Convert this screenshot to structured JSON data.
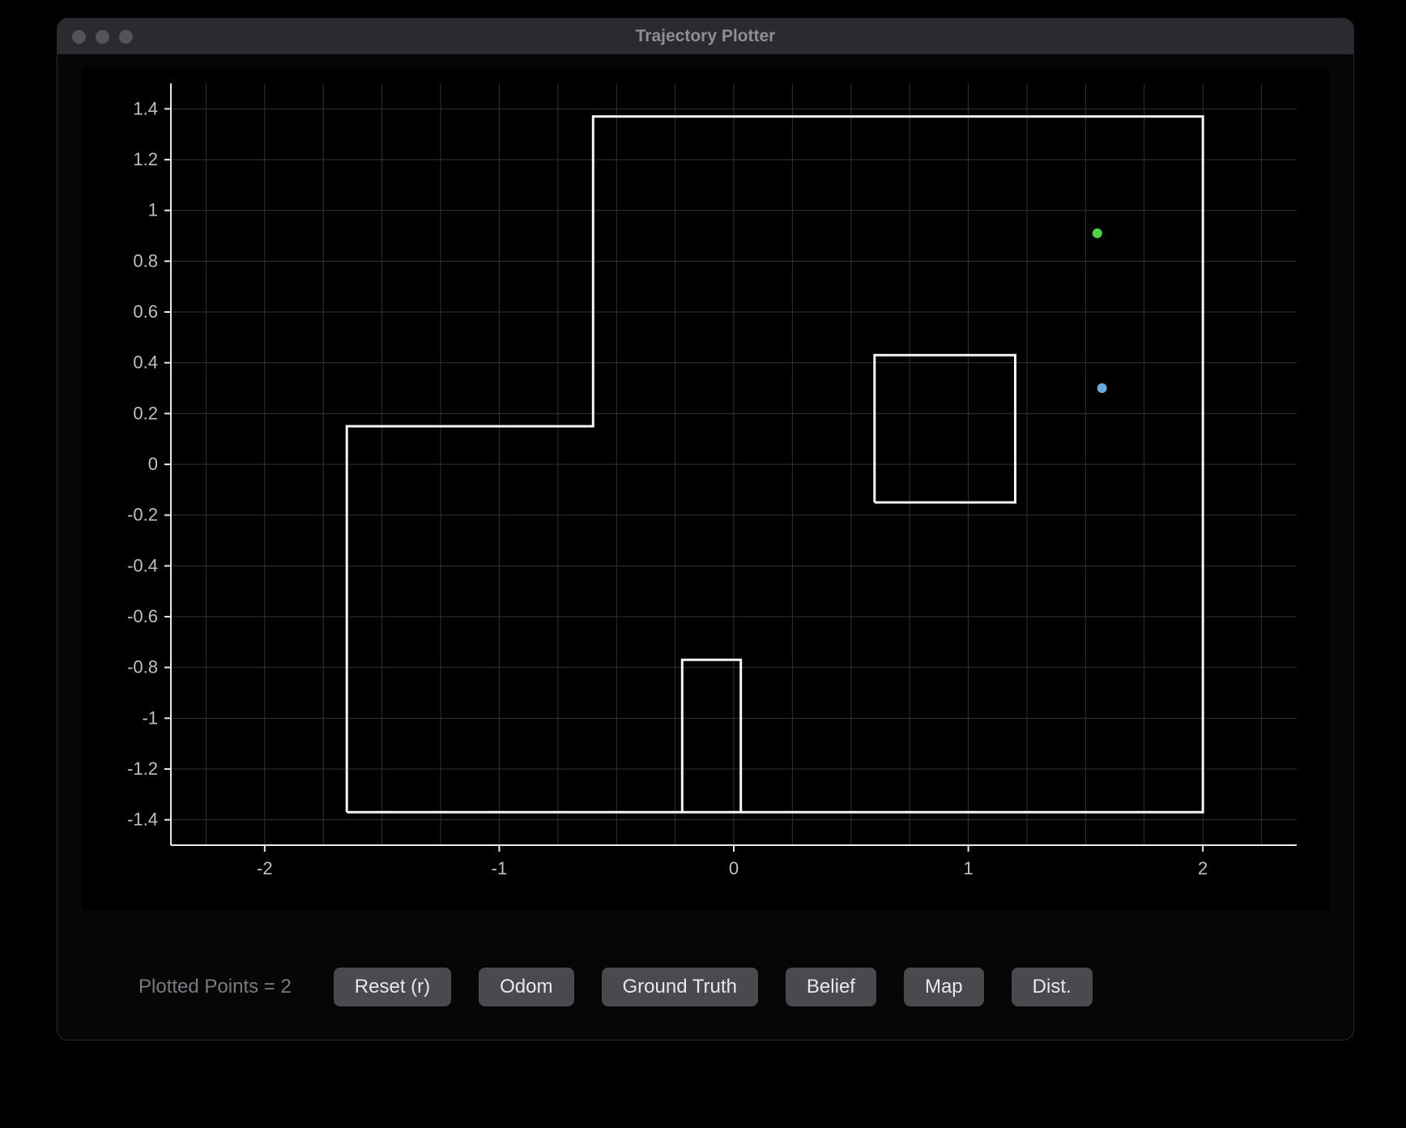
{
  "window": {
    "title": "Trajectory Plotter"
  },
  "status": {
    "text": "Plotted Points = 2"
  },
  "buttons": {
    "reset": "Reset (r)",
    "odom": "Odom",
    "gt": "Ground Truth",
    "belief": "Belief",
    "map": "Map",
    "dist": "Dist."
  },
  "chart": {
    "type": "scatter+map",
    "background_color": "#000000",
    "axis_color": "#e8e8e8",
    "grid_color": "#323232",
    "tick_fontsize": 22,
    "tick_color": "#bfbfc4",
    "map_line_color": "#f5f5f5",
    "map_line_width": 3,
    "xlim": [
      -2.4,
      2.4
    ],
    "ylim": [
      -1.5,
      1.5
    ],
    "xticks": [
      -2,
      -1,
      0,
      1,
      2
    ],
    "yticks": [
      -1.4,
      -1.2,
      -1.0,
      -0.8,
      -0.6,
      -0.4,
      -0.2,
      0,
      0.2,
      0.4,
      0.6,
      0.8,
      1.0,
      1.2,
      1.4
    ],
    "xtick_labels": [
      "-2",
      "-1",
      "0",
      "1",
      "2"
    ],
    "ytick_labels": [
      "-1.4",
      "-1.2",
      "-1",
      "-0.8",
      "-0.6",
      "-0.4",
      "-0.2",
      "0",
      "0.2",
      "0.4",
      "0.6",
      "0.8",
      "1",
      "1.2",
      "1.4"
    ],
    "grid_x_step": 0.25,
    "grid_y_step": 0.2,
    "map_polylines": [
      [
        [
          -1.65,
          -1.37
        ],
        [
          2.0,
          -1.37
        ],
        [
          2.0,
          1.37
        ],
        [
          -0.6,
          1.37
        ],
        [
          -0.6,
          0.15
        ],
        [
          -1.65,
          0.15
        ],
        [
          -1.65,
          -1.37
        ]
      ],
      [
        [
          0.6,
          -0.15
        ],
        [
          0.6,
          0.43
        ],
        [
          1.2,
          0.43
        ],
        [
          1.2,
          -0.15
        ],
        [
          0.6,
          -0.15
        ]
      ],
      [
        [
          -0.22,
          -1.37
        ],
        [
          -0.22,
          -0.77
        ],
        [
          0.03,
          -0.77
        ],
        [
          0.03,
          -1.37
        ]
      ]
    ],
    "points": [
      {
        "x": 1.55,
        "y": 0.91,
        "color": "#4fd24a",
        "r": 6
      },
      {
        "x": 1.57,
        "y": 0.3,
        "color": "#6fa8dc",
        "r": 6
      }
    ]
  }
}
